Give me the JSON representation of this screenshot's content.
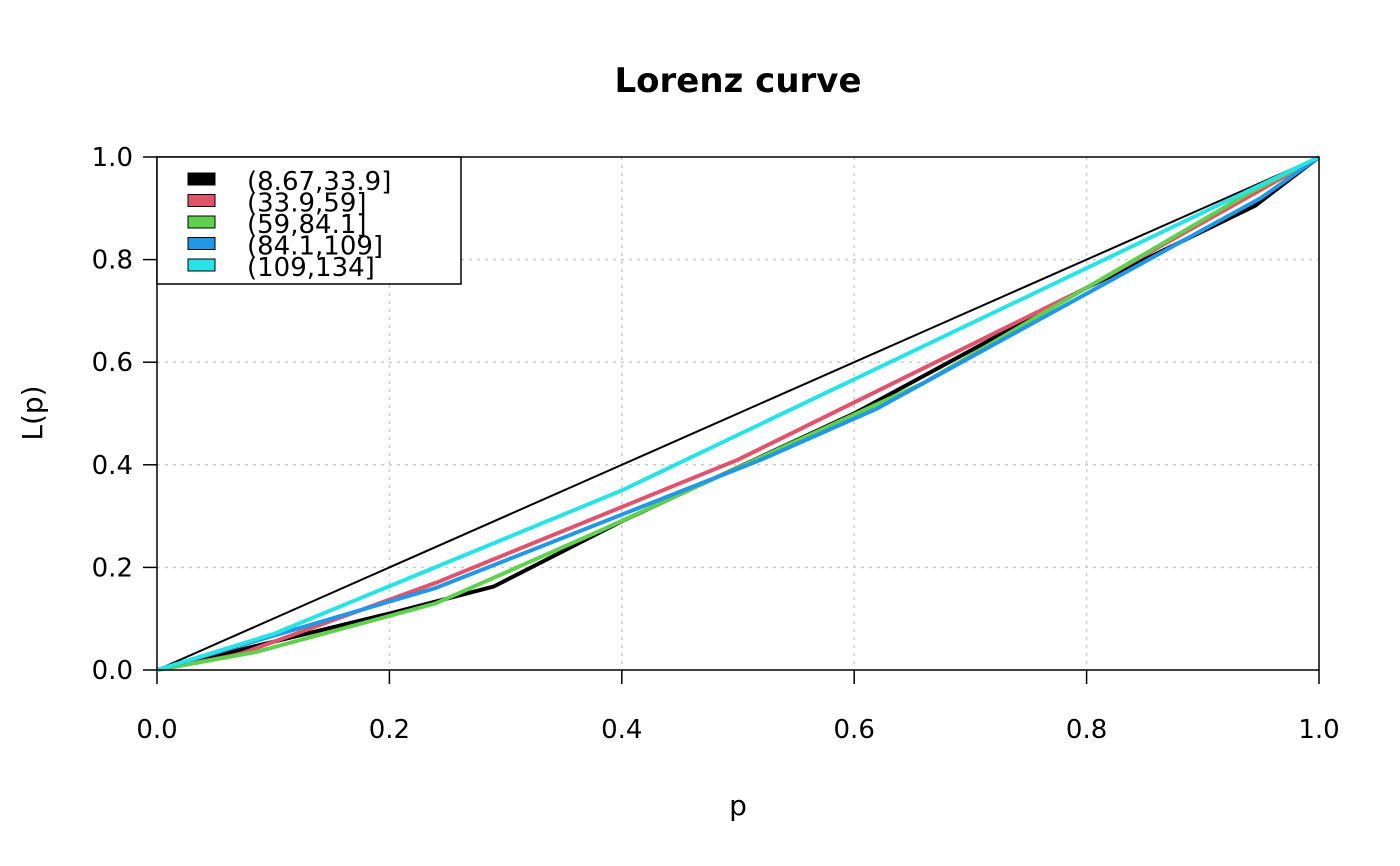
{
  "chart_data": {
    "type": "line",
    "title": "Lorenz curve",
    "xlabel": "p",
    "ylabel": "L(p)",
    "xlim": [
      0,
      1
    ],
    "ylim": [
      0,
      1
    ],
    "xticks": [
      "0.0",
      "0.2",
      "0.4",
      "0.6",
      "0.8",
      "1.0"
    ],
    "yticks": [
      "0.0",
      "0.2",
      "0.4",
      "0.6",
      "0.8",
      "1.0"
    ],
    "grid": true,
    "legend_position": "top-left",
    "equality_line": {
      "x": [
        0,
        1
      ],
      "y": [
        0,
        1
      ],
      "color": "#000000"
    },
    "series": [
      {
        "name": "(8.67,33.9]",
        "color": "#000000",
        "x": [
          0,
          0.1,
          0.2,
          0.29,
          0.4,
          0.6,
          0.8,
          0.945,
          1
        ],
        "y": [
          0,
          0.055,
          0.11,
          0.163,
          0.29,
          0.5,
          0.745,
          0.905,
          1
        ]
      },
      {
        "name": "(33.9,59]",
        "color": "#DF536B",
        "x": [
          0,
          0.07,
          0.24,
          0.5,
          0.8,
          1
        ],
        "y": [
          0,
          0.03,
          0.17,
          0.41,
          0.745,
          1
        ]
      },
      {
        "name": "(59,84.1]",
        "color": "#61D04F",
        "x": [
          0,
          0.085,
          0.24,
          0.38,
          0.66,
          0.94,
          1
        ],
        "y": [
          0,
          0.035,
          0.13,
          0.27,
          0.56,
          0.93,
          1
        ]
      },
      {
        "name": "(84.1,109]",
        "color": "#2297E6",
        "x": [
          0,
          0.24,
          0.52,
          0.62,
          0.95,
          1
        ],
        "y": [
          0,
          0.16,
          0.41,
          0.51,
          0.92,
          1
        ]
      },
      {
        "name": "(109,134]",
        "color": "#28E2E5",
        "x": [
          0,
          0.1,
          0.4,
          1
        ],
        "y": [
          0,
          0.07,
          0.35,
          1
        ]
      }
    ]
  }
}
